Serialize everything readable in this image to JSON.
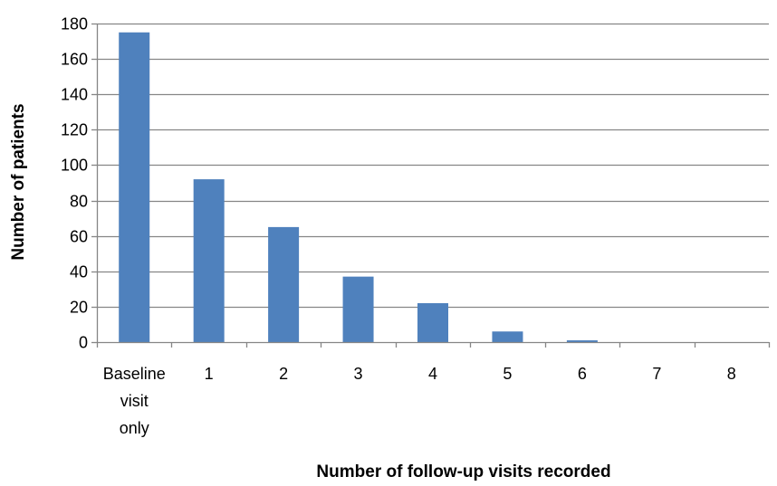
{
  "chart_data": {
    "type": "bar",
    "title": "",
    "xlabel": "Number of follow-up visits recorded",
    "ylabel": "Number of patients",
    "categories": [
      [
        "Baseline",
        "visit",
        "only"
      ],
      [
        "1"
      ],
      [
        "2"
      ],
      [
        "3"
      ],
      [
        "4"
      ],
      [
        "5"
      ],
      [
        "6"
      ],
      [
        "7"
      ],
      [
        "8"
      ]
    ],
    "values": [
      175,
      92,
      65,
      37,
      22,
      6,
      1,
      0,
      0
    ],
    "ylim": [
      0,
      180
    ],
    "yticks": [
      "0",
      "20",
      "40",
      "60",
      "80",
      "100",
      "120",
      "140",
      "160",
      "180"
    ],
    "grid": true,
    "legend": "none",
    "colors": {
      "bar": "#4F81BD",
      "grid": "#868686",
      "axis": "#868686"
    }
  }
}
